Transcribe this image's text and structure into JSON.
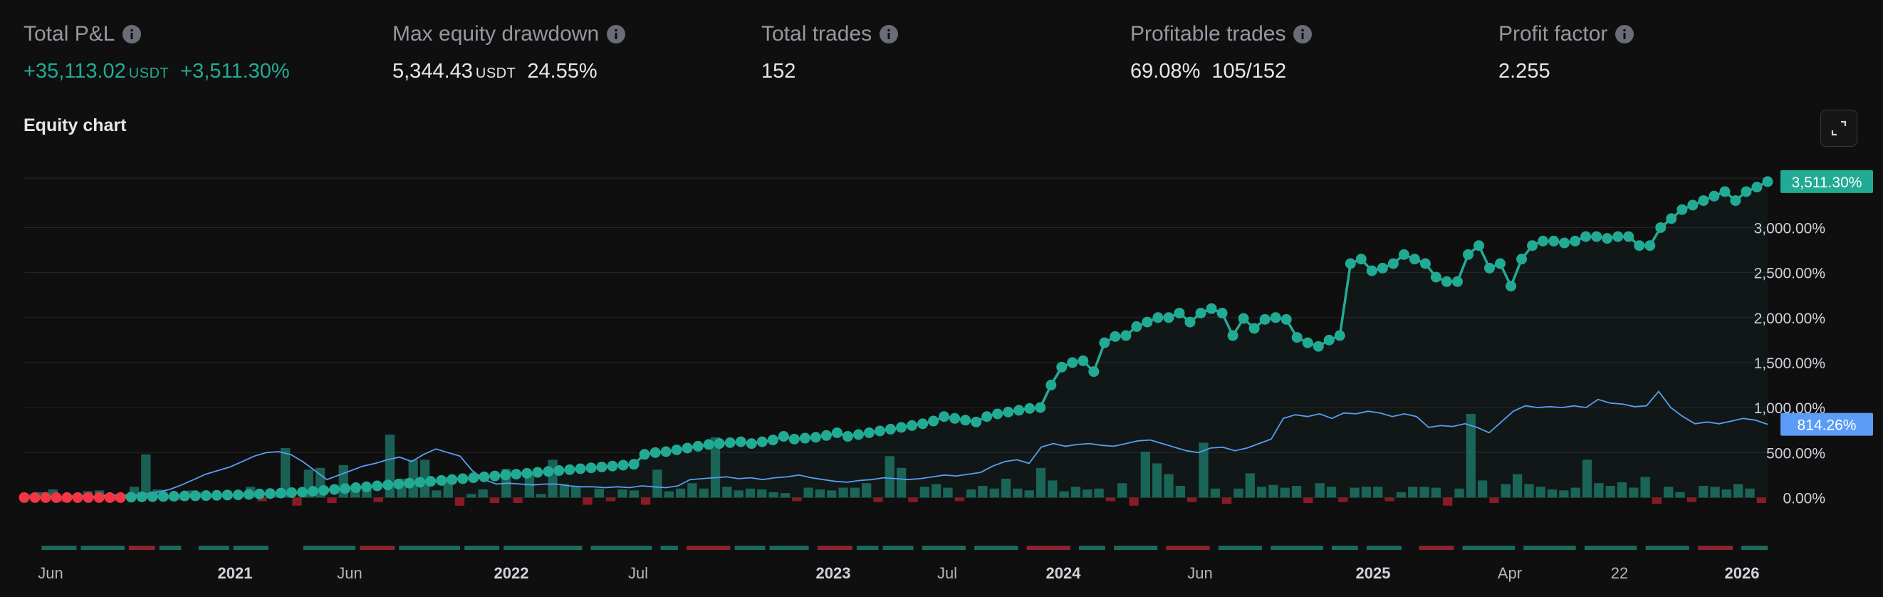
{
  "stats": [
    {
      "label": "Total P&L",
      "value": "+35,113.02",
      "unit": "USDT",
      "secondary": "+3,511.30%",
      "positive": true
    },
    {
      "label": "Max equity drawdown",
      "value": "5,344.43",
      "unit": "USDT",
      "secondary": "24.55%",
      "positive": false
    },
    {
      "label": "Total trades",
      "value": "152",
      "unit": "",
      "secondary": "",
      "positive": false
    },
    {
      "label": "Profitable trades",
      "value": "69.08%",
      "unit": "",
      "secondary": "105/152",
      "positive": false
    },
    {
      "label": "Profit factor",
      "value": "2.255",
      "unit": "",
      "secondary": "",
      "positive": false
    }
  ],
  "chart_title": "Equity chart",
  "colors": {
    "background": "#0f0f0f",
    "equity": "#22ab94",
    "equity_negative": "#f23645",
    "buy_hold": "#5b9cf6",
    "bar_positive": "#1c6f61",
    "bar_negative": "#9c1f2c"
  },
  "icons": {
    "info": "info-icon",
    "expand": "expand-icon"
  },
  "chart_data": {
    "type": "line",
    "y_ticks": [
      "0.00%",
      "500.00%",
      "1,000.00%",
      "1,500.00%",
      "2,000.00%",
      "2,500.00%",
      "3,000.00%"
    ],
    "ylim": [
      -60,
      3550
    ],
    "x_ticks": [
      {
        "label": "Jun",
        "bold": false
      },
      {
        "label": "2021",
        "bold": true
      },
      {
        "label": "Jun",
        "bold": false
      },
      {
        "label": "2022",
        "bold": true
      },
      {
        "label": "Jul",
        "bold": false
      },
      {
        "label": "2023",
        "bold": true
      },
      {
        "label": "Jul",
        "bold": false
      },
      {
        "label": "2024",
        "bold": true
      },
      {
        "label": "Jun",
        "bold": false
      },
      {
        "label": "2025",
        "bold": true
      },
      {
        "label": "Apr",
        "bold": false
      },
      {
        "label": "22",
        "bold": false
      },
      {
        "label": "2026",
        "bold": true
      }
    ],
    "last_values": [
      {
        "label": "3,511.30%",
        "series": "equity",
        "value": 3511.3
      },
      {
        "label": "814.26%",
        "series": "buy_hold",
        "value": 814.26
      }
    ],
    "grid": true,
    "series": [
      {
        "key": "equity",
        "values": [
          0,
          0,
          0,
          0,
          0,
          0,
          0,
          0,
          0,
          0,
          5,
          8,
          10,
          12,
          15,
          18,
          20,
          22,
          25,
          28,
          30,
          35,
          40,
          45,
          50,
          55,
          60,
          70,
          80,
          90,
          100,
          110,
          120,
          130,
          140,
          150,
          160,
          170,
          180,
          190,
          200,
          210,
          220,
          230,
          240,
          250,
          260,
          270,
          280,
          290,
          300,
          310,
          320,
          330,
          340,
          350,
          360,
          370,
          480,
          500,
          510,
          530,
          550,
          570,
          590,
          600,
          610,
          620,
          600,
          620,
          640,
          680,
          650,
          660,
          670,
          690,
          720,
          680,
          700,
          720,
          740,
          760,
          780,
          800,
          820,
          850,
          900,
          880,
          860,
          840,
          900,
          930,
          950,
          970,
          990,
          1000,
          1250,
          1450,
          1500,
          1520,
          1400,
          1720,
          1790,
          1800,
          1900,
          1950,
          2000,
          2000,
          2050,
          1950,
          2050,
          2100,
          2050,
          1800,
          1990,
          1880,
          1980,
          2000,
          1980,
          1780,
          1720,
          1680,
          1750,
          1800,
          2600,
          2650,
          2520,
          2550,
          2600,
          2700,
          2650,
          2600,
          2450,
          2400,
          2400,
          2700,
          2800,
          2550,
          2600,
          2350,
          2650,
          2800,
          2850,
          2850,
          2830,
          2850,
          2900,
          2900,
          2880,
          2900,
          2900,
          2800,
          2800,
          3000,
          3100,
          3200,
          3250,
          3300,
          3350,
          3400,
          3300,
          3400,
          3450,
          3511.3
        ]
      },
      {
        "key": "buy_hold",
        "values": [
          0,
          5,
          10,
          0,
          15,
          20,
          10,
          30,
          25,
          20,
          40,
          60,
          90,
          140,
          200,
          260,
          300,
          340,
          400,
          460,
          500,
          510,
          480,
          400,
          300,
          200,
          250,
          300,
          350,
          380,
          420,
          450,
          400,
          480,
          540,
          500,
          460,
          300,
          200,
          150,
          160,
          150,
          140,
          150,
          150,
          130,
          120,
          120,
          110,
          120,
          110,
          130,
          120,
          110,
          130,
          200,
          210,
          220,
          230,
          210,
          220,
          200,
          220,
          230,
          250,
          220,
          200,
          180,
          170,
          190,
          200,
          220,
          210,
          200,
          210,
          230,
          250,
          240,
          260,
          280,
          350,
          400,
          420,
          380,
          560,
          600,
          570,
          590,
          600,
          580,
          570,
          600,
          630,
          640,
          600,
          560,
          520,
          500,
          550,
          560,
          520,
          550,
          600,
          650,
          880,
          920,
          900,
          930,
          880,
          940,
          930,
          960,
          940,
          900,
          930,
          900,
          780,
          800,
          790,
          820,
          780,
          720,
          840,
          960,
          1020,
          1000,
          1010,
          1000,
          1020,
          1000,
          1090,
          1050,
          1040,
          1010,
          1020,
          1180,
          1000,
          900,
          820,
          840,
          820,
          850,
          880,
          860,
          814.26
        ]
      }
    ],
    "bars": [
      40,
      60,
      90,
      -50,
      30,
      70,
      80,
      -40,
      40,
      120,
      480,
      90,
      -20,
      -30,
      80,
      60,
      40,
      70,
      60,
      120,
      -40,
      40,
      550,
      -90,
      310,
      330,
      -60,
      360,
      80,
      120,
      -50,
      700,
      210,
      420,
      420,
      80,
      230,
      -90,
      40,
      90,
      -60,
      320,
      -60,
      280,
      40,
      420,
      150,
      120,
      -80,
      100,
      -40,
      90,
      80,
      -80,
      310,
      70,
      100,
      160,
      100,
      670,
      120,
      80,
      100,
      90,
      60,
      50,
      -40,
      110,
      90,
      80,
      110,
      110,
      160,
      -50,
      460,
      330,
      -50,
      120,
      150,
      110,
      -40,
      90,
      130,
      100,
      210,
      100,
      80,
      330,
      190,
      70,
      120,
      90,
      100,
      -40,
      160,
      -90,
      510,
      380,
      260,
      130,
      -50,
      610,
      100,
      -70,
      100,
      270,
      120,
      140,
      110,
      130,
      -60,
      160,
      120,
      -50,
      110,
      120,
      120,
      -40,
      60,
      120,
      120,
      110,
      -90,
      100,
      930,
      190,
      -60,
      150,
      260,
      150,
      120,
      90,
      80,
      110,
      420,
      160,
      130,
      170,
      110,
      230,
      -70,
      120,
      60,
      -50,
      130,
      120,
      90,
      150,
      100,
      -60
    ],
    "timeline_segments": [
      {
        "start": 0.02,
        "end": 0.06,
        "color": "green"
      },
      {
        "start": 0.065,
        "end": 0.115,
        "color": "green"
      },
      {
        "start": 0.12,
        "end": 0.15,
        "color": "red"
      },
      {
        "start": 0.155,
        "end": 0.18,
        "color": "green"
      },
      {
        "start": 0.2,
        "end": 0.235,
        "color": "green"
      },
      {
        "start": 0.24,
        "end": 0.28,
        "color": "green"
      },
      {
        "start": 0.32,
        "end": 0.38,
        "color": "green"
      },
      {
        "start": 0.385,
        "end": 0.425,
        "color": "red"
      },
      {
        "start": 0.43,
        "end": 0.5,
        "color": "green"
      },
      {
        "start": 0.505,
        "end": 0.545,
        "color": "green"
      },
      {
        "start": 0.55,
        "end": 0.64,
        "color": "green"
      },
      {
        "start": 0.65,
        "end": 0.72,
        "color": "green"
      },
      {
        "start": 0.73,
        "end": 0.75,
        "color": "green"
      },
      {
        "start": 0.76,
        "end": 0.81,
        "color": "red"
      },
      {
        "start": 0.815,
        "end": 0.85,
        "color": "green"
      },
      {
        "start": 0.855,
        "end": 0.9,
        "color": "green"
      },
      {
        "start": 0.91,
        "end": 0.95,
        "color": "red"
      },
      {
        "start": 0.955,
        "end": 0.98,
        "color": "green"
      },
      {
        "start": 0.985,
        "end": 1.02,
        "color": "green"
      },
      {
        "start": 1.03,
        "end": 1.08,
        "color": "green"
      },
      {
        "start": 1.09,
        "end": 1.14,
        "color": "green"
      },
      {
        "start": 1.15,
        "end": 1.2,
        "color": "red"
      },
      {
        "start": 1.21,
        "end": 1.24,
        "color": "green"
      },
      {
        "start": 1.25,
        "end": 1.3,
        "color": "green"
      },
      {
        "start": 1.31,
        "end": 1.36,
        "color": "red"
      },
      {
        "start": 1.37,
        "end": 1.42,
        "color": "green"
      },
      {
        "start": 1.43,
        "end": 1.49,
        "color": "green"
      },
      {
        "start": 1.5,
        "end": 1.53,
        "color": "green"
      },
      {
        "start": 1.54,
        "end": 1.58,
        "color": "green"
      },
      {
        "start": 1.6,
        "end": 1.64,
        "color": "red"
      },
      {
        "start": 1.65,
        "end": 1.71,
        "color": "green"
      },
      {
        "start": 1.72,
        "end": 1.78,
        "color": "green"
      },
      {
        "start": 1.79,
        "end": 1.85,
        "color": "green"
      },
      {
        "start": 1.86,
        "end": 1.91,
        "color": "green"
      },
      {
        "start": 1.92,
        "end": 1.96,
        "color": "red"
      },
      {
        "start": 1.97,
        "end": 2.0,
        "color": "green"
      }
    ]
  }
}
